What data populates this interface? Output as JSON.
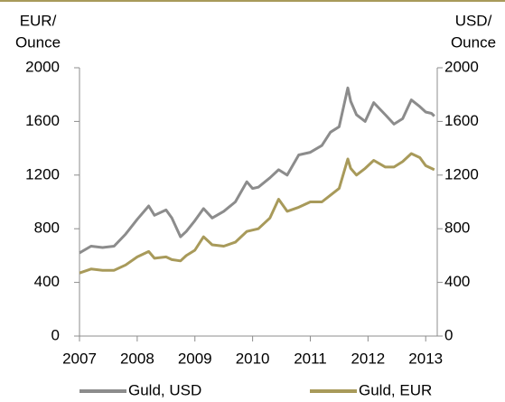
{
  "chart_data": {
    "type": "line",
    "ylabel": [
      "EUR/",
      "Ounce"
    ],
    "y2label": [
      "USD/",
      "Ounce"
    ],
    "x": [
      2007.0,
      2007.2,
      2007.4,
      2007.6,
      2007.8,
      2008.0,
      2008.2,
      2008.3,
      2008.5,
      2008.6,
      2008.75,
      2008.85,
      2009.0,
      2009.15,
      2009.3,
      2009.5,
      2009.7,
      2009.9,
      2010.0,
      2010.1,
      2010.3,
      2010.45,
      2010.6,
      2010.8,
      2011.0,
      2011.2,
      2011.35,
      2011.5,
      2011.65,
      2011.7,
      2011.8,
      2011.95,
      2012.1,
      2012.3,
      2012.45,
      2012.6,
      2012.75,
      2012.9,
      2013.0,
      2013.1,
      2013.15
    ],
    "series": [
      {
        "name": "Guld, USD",
        "color": "#8c8c8c",
        "axis": "y2",
        "values": [
          620,
          670,
          660,
          670,
          760,
          870,
          970,
          900,
          940,
          880,
          740,
          780,
          860,
          950,
          880,
          930,
          1000,
          1150,
          1100,
          1110,
          1180,
          1240,
          1200,
          1350,
          1370,
          1420,
          1520,
          1560,
          1850,
          1750,
          1650,
          1600,
          1740,
          1650,
          1580,
          1620,
          1760,
          1710,
          1670,
          1660,
          1640
        ]
      },
      {
        "name": "Guld, EUR",
        "color": "#a89a5a",
        "values": [
          470,
          500,
          490,
          490,
          530,
          590,
          630,
          580,
          590,
          570,
          560,
          600,
          640,
          740,
          680,
          670,
          700,
          780,
          790,
          800,
          880,
          1020,
          930,
          960,
          1000,
          1000,
          1050,
          1100,
          1320,
          1250,
          1200,
          1250,
          1310,
          1260,
          1260,
          1300,
          1360,
          1330,
          1270,
          1250,
          1240
        ]
      }
    ],
    "xlim": [
      2007,
      2013.2
    ],
    "xticks": [
      2007,
      2008,
      2009,
      2010,
      2011,
      2012,
      2013
    ],
    "ylim": [
      0,
      2000
    ],
    "yticks": [
      0,
      400,
      800,
      1200,
      1600,
      2000
    ],
    "y2lim": [
      0,
      2000
    ],
    "y2ticks": [
      0,
      400,
      800,
      1200,
      1600,
      2000
    ],
    "legend": "bottom"
  }
}
